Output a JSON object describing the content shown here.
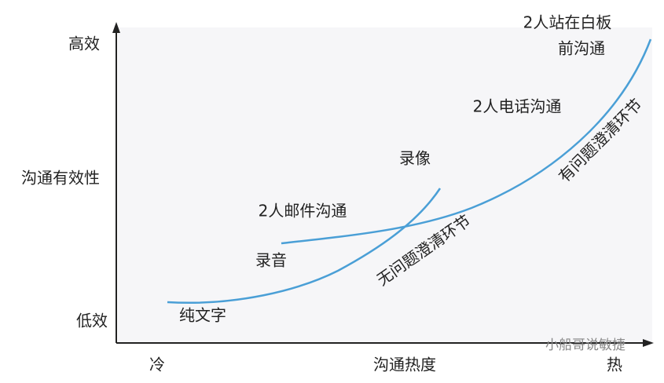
{
  "y_axis": {
    "labels": [
      "高效",
      "沟通有效性",
      "低效"
    ]
  },
  "x_axis": {
    "labels": [
      "冷",
      "沟通热度",
      "热"
    ]
  },
  "points": [
    "纯文字",
    "录音",
    "2人邮件沟通",
    "录像",
    "2人电话沟通",
    "2人站在白板",
    "前沟通"
  ],
  "curves": [
    "无问题澄清环节",
    "有问题澄清环节"
  ],
  "watermark": "小船哥说敏捷"
}
